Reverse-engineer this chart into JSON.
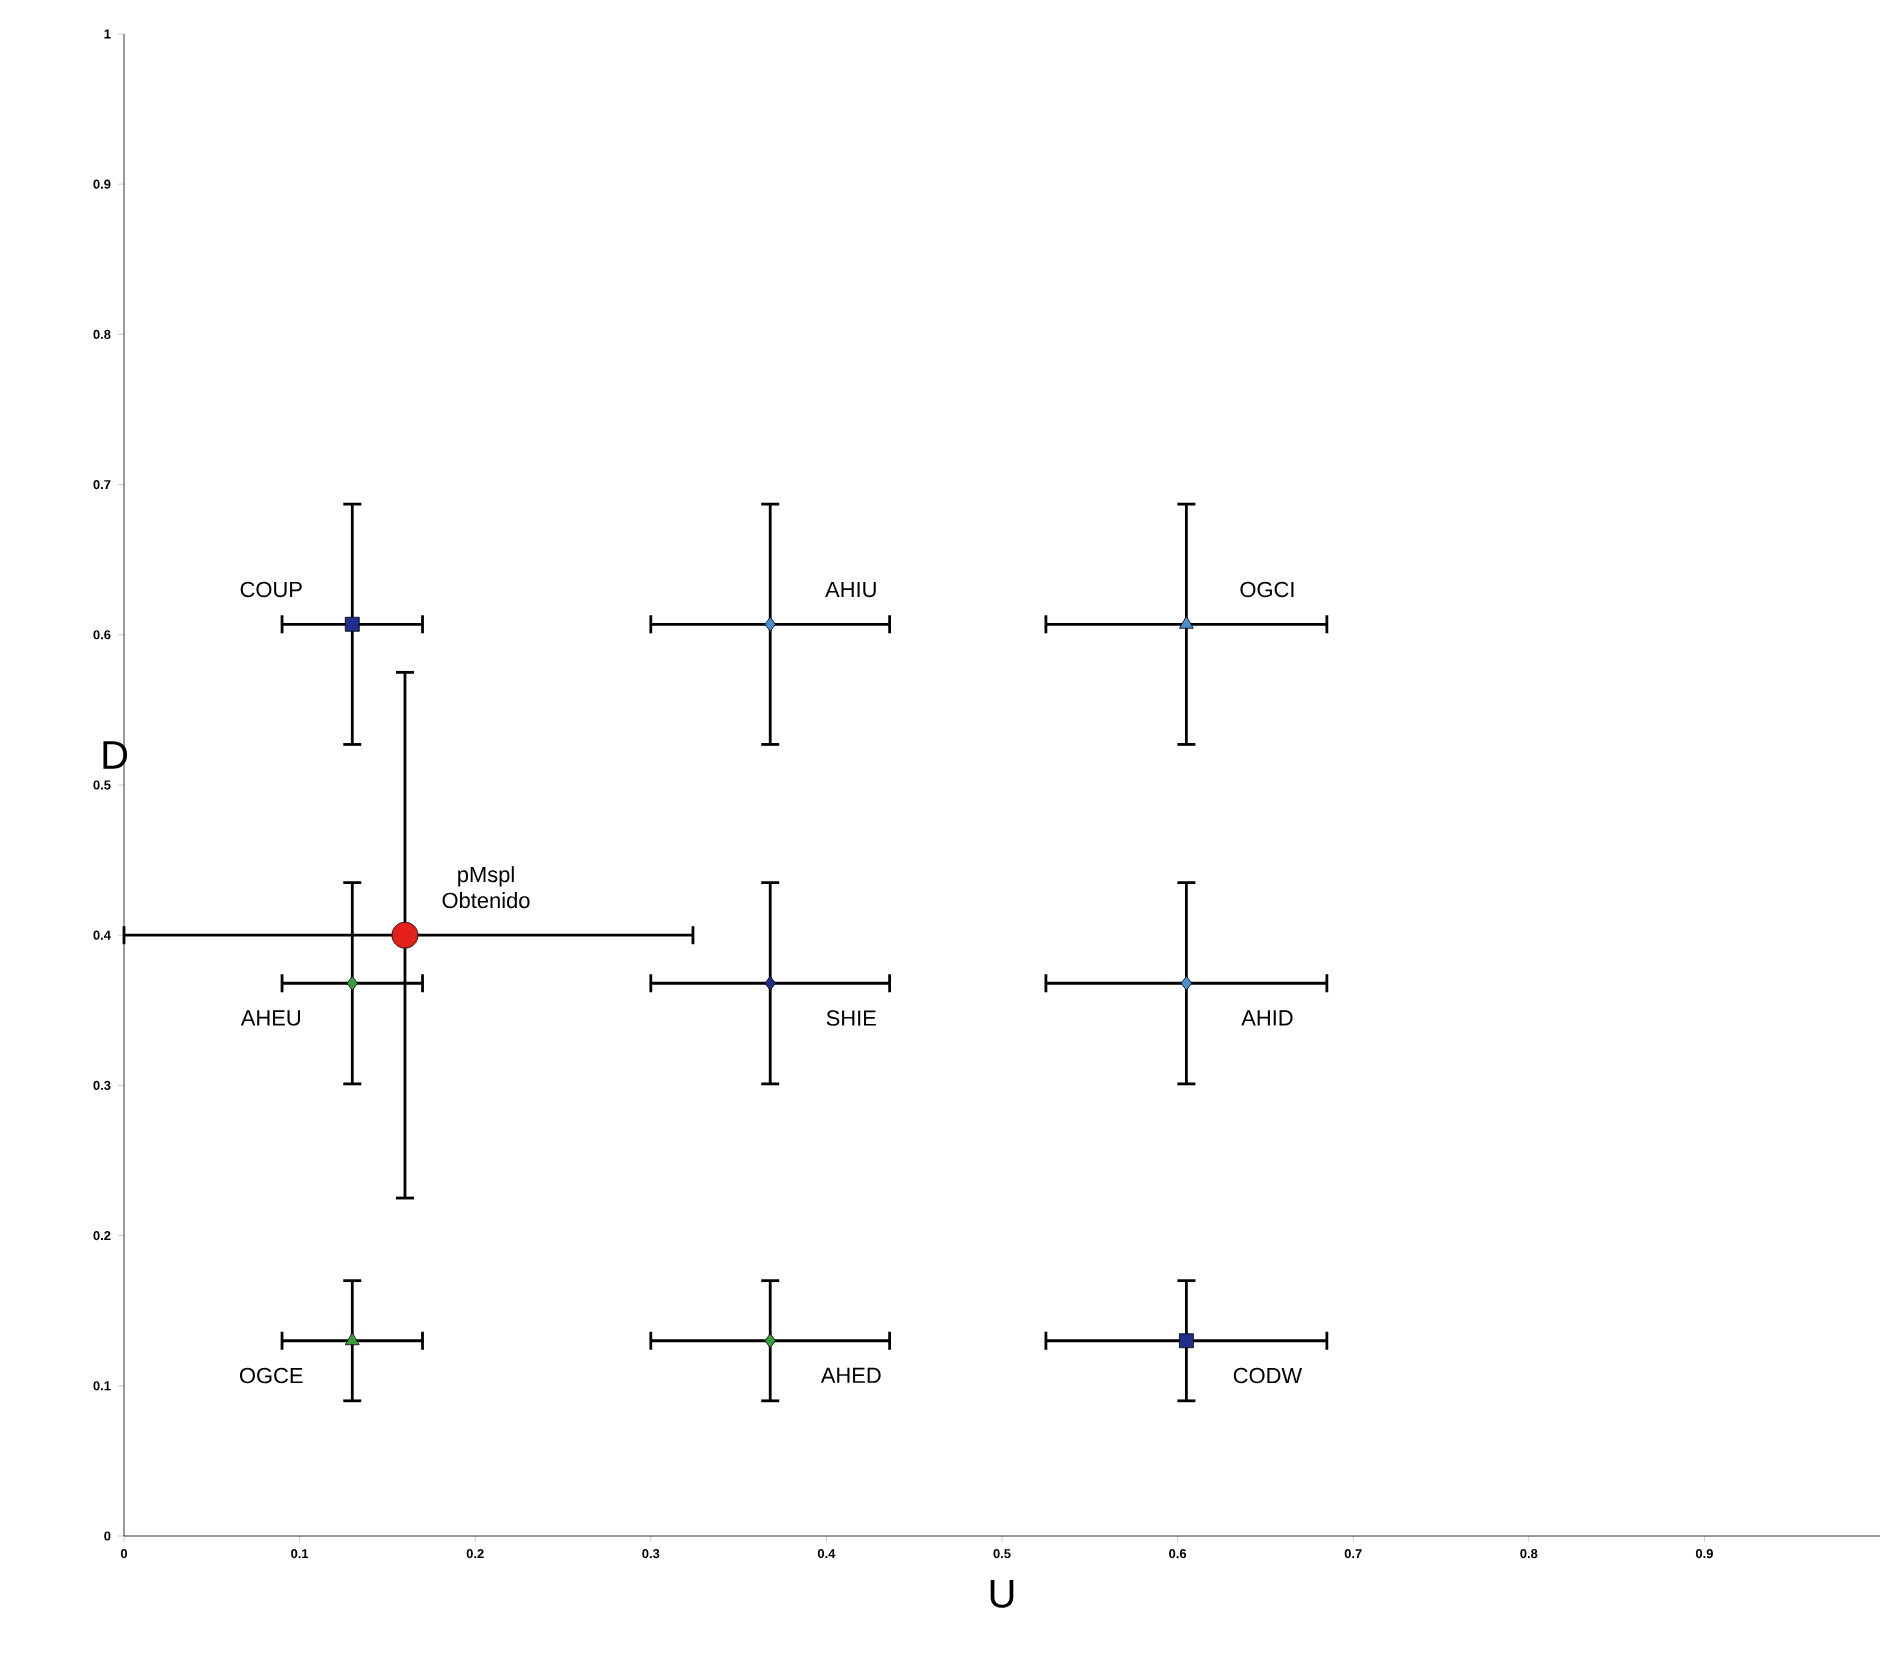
{
  "chart_data": {
    "type": "scatter",
    "xlabel": "U",
    "ylabel": "D",
    "xlim": [
      0,
      1
    ],
    "ylim": [
      0,
      1
    ],
    "xticks": [
      0,
      0.1,
      0.2,
      0.3,
      0.4,
      0.5,
      0.6,
      0.7,
      0.8,
      0.9
    ],
    "yticks": [
      0,
      0.1,
      0.2,
      0.3,
      0.4,
      0.5,
      0.6,
      0.7,
      0.8,
      0.9,
      1
    ],
    "grid": false,
    "series": [
      {
        "name": "COUP",
        "color": "#1f2d8c",
        "marker": "square",
        "x": [
          0.13
        ],
        "values": [
          0.607
        ],
        "xerrors": [
          0.04
        ],
        "errors": [
          0.08
        ]
      },
      {
        "name": "AHIU",
        "color": "#4a90d0",
        "marker": "diamond",
        "x": [
          0.368
        ],
        "values": [
          0.607
        ],
        "xerrors": [
          0.068
        ],
        "errors": [
          0.08
        ]
      },
      {
        "name": "OGCI",
        "color": "#4a90d0",
        "marker": "triangle",
        "x": [
          0.605
        ],
        "values": [
          0.607
        ],
        "xerrors": [
          0.08
        ],
        "errors": [
          0.08
        ]
      },
      {
        "name": "AHEU",
        "color": "#3a9e3a",
        "marker": "diamond",
        "x": [
          0.13
        ],
        "values": [
          0.368
        ],
        "xerrors": [
          0.04
        ],
        "errors": [
          0.067
        ]
      },
      {
        "name": "SHIE",
        "color": "#1f2d8c",
        "marker": "diamond",
        "x": [
          0.368
        ],
        "values": [
          0.368
        ],
        "xerrors": [
          0.068
        ],
        "errors": [
          0.067
        ]
      },
      {
        "name": "AHID",
        "color": "#4a90d0",
        "marker": "diamond",
        "x": [
          0.605
        ],
        "values": [
          0.368
        ],
        "xerrors": [
          0.08
        ],
        "errors": [
          0.067
        ]
      },
      {
        "name": "OGCE",
        "color": "#3a9e3a",
        "marker": "triangle",
        "x": [
          0.13
        ],
        "values": [
          0.13
        ],
        "xerrors": [
          0.04
        ],
        "errors": [
          0.04
        ]
      },
      {
        "name": "AHED",
        "color": "#3a9e3a",
        "marker": "diamond",
        "x": [
          0.368
        ],
        "values": [
          0.13
        ],
        "xerrors": [
          0.068
        ],
        "errors": [
          0.04
        ]
      },
      {
        "name": "CODW",
        "color": "#1f2d8c",
        "marker": "square",
        "x": [
          0.605
        ],
        "values": [
          0.13
        ],
        "xerrors": [
          0.08
        ],
        "errors": [
          0.04
        ]
      },
      {
        "name": "pMspl Obtenido",
        "color": "#e3201b",
        "marker": "circle",
        "x": [
          0.16
        ],
        "values": [
          0.4
        ],
        "xerrors": [
          [
            0,
            0.324
          ]
        ],
        "errors": [
          [
            0.225,
            0.575
          ]
        ]
      }
    ]
  }
}
